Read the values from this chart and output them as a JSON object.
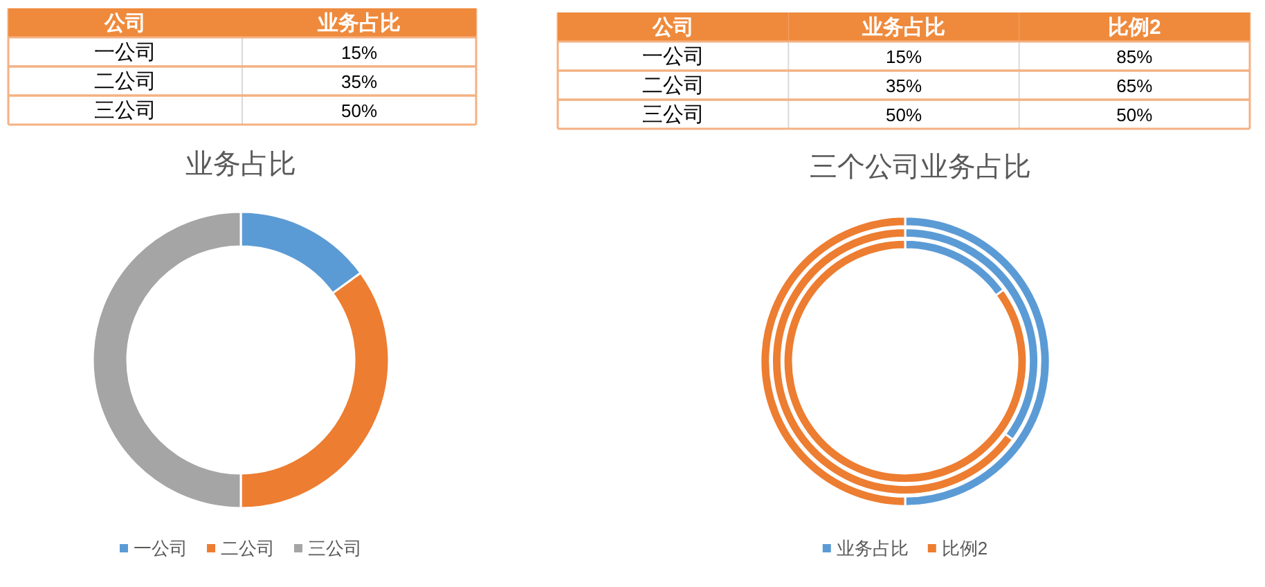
{
  "chart_data": [
    {
      "type": "other",
      "annotations": [
        "公司",
        "业务占比",
        "一公司",
        "15%",
        "二公司",
        "35%",
        "三公司",
        "50%"
      ]
    },
    {
      "type": "other",
      "annotations": [
        "公司",
        "业务占比",
        "比例2",
        "一公司",
        "15%",
        "85%",
        "二公司",
        "35%",
        "65%",
        "三公司",
        "50%",
        "50%"
      ]
    },
    {
      "type": "donut",
      "title": "业务占比",
      "categories": [
        "一公司",
        "二公司",
        "三公司"
      ],
      "colors": [
        "#5b9bd5",
        "#ed7d31",
        "#a5a5a5"
      ],
      "values": [
        15,
        35,
        50
      ],
      "legend": "bottom"
    },
    {
      "type": "donut",
      "title": "三个公司业务占比",
      "categories": [
        "业务占比",
        "比例2"
      ],
      "colors": [
        "#5b9bd5",
        "#ed7d31"
      ],
      "series": [
        {
          "values": [
            15,
            85
          ]
        },
        {
          "values": [
            35,
            65
          ]
        },
        {
          "values": [
            50,
            50
          ]
        }
      ],
      "legend": "bottom"
    }
  ]
}
